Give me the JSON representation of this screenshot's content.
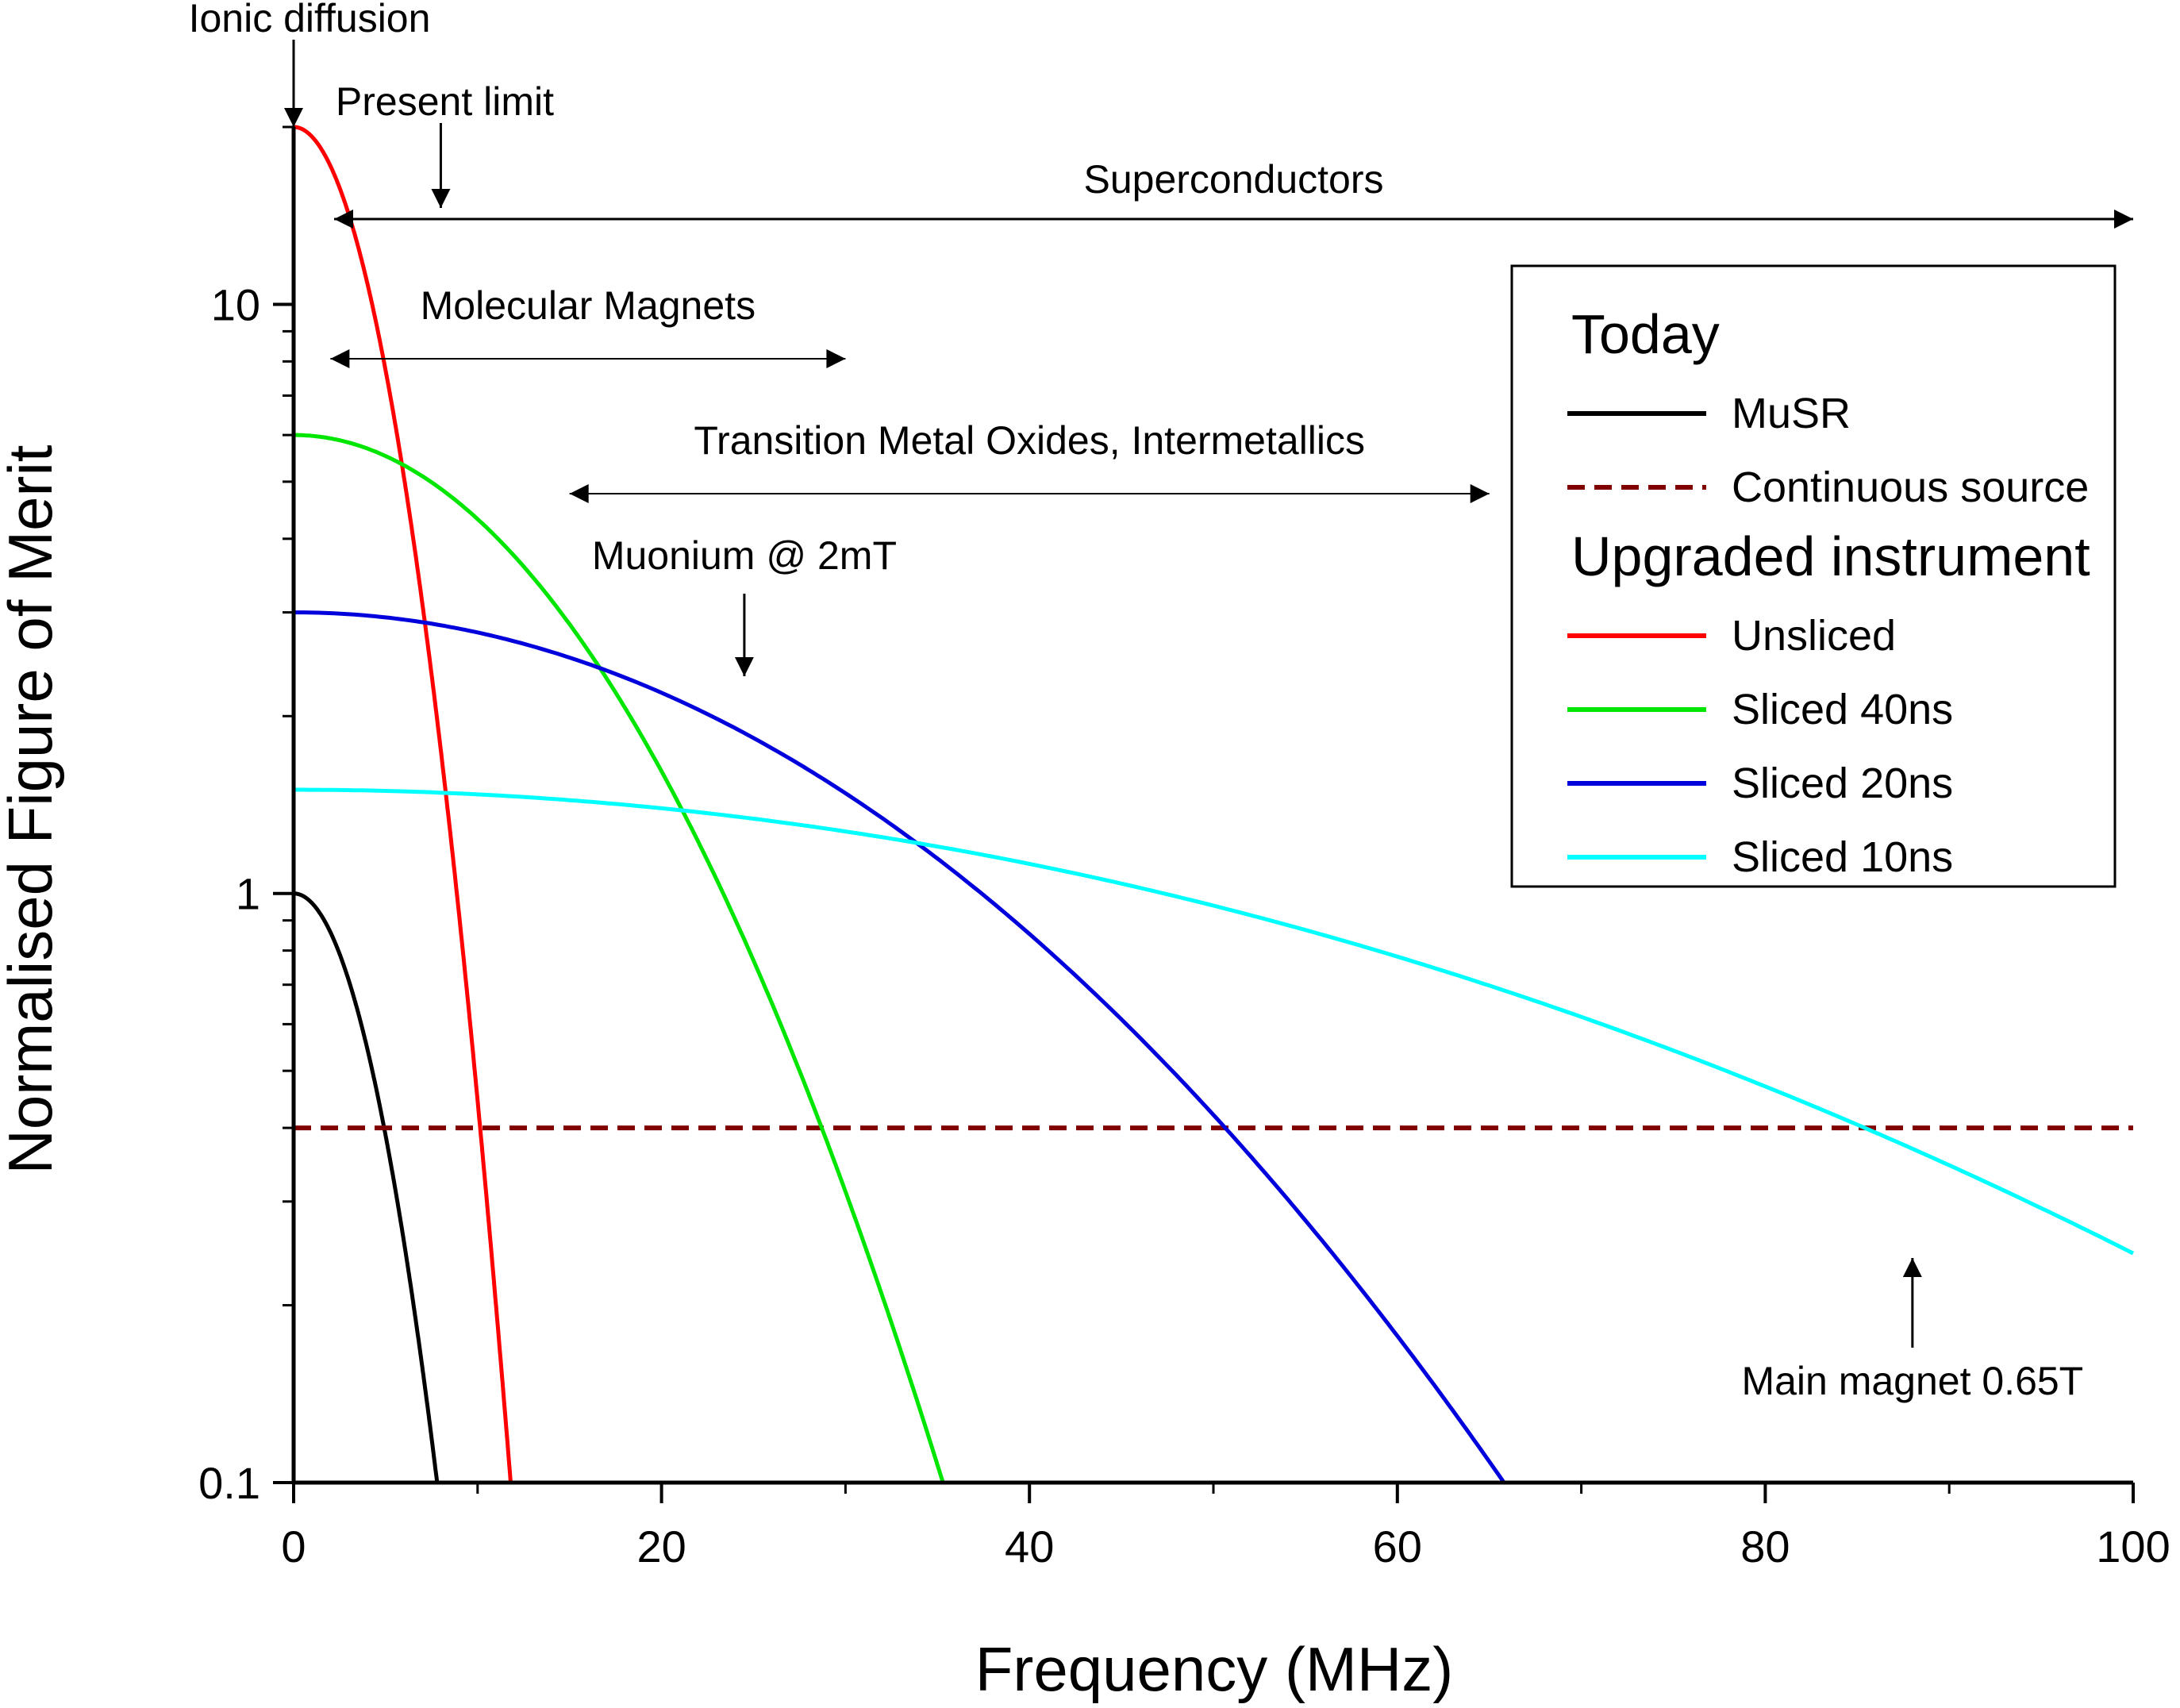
{
  "chart_data": {
    "type": "line",
    "title": "",
    "xlabel": "Frequency (MHz)",
    "ylabel": "Normalised Figure of Merit",
    "xlim": [
      0,
      100
    ],
    "ylim": [
      0.1,
      20
    ],
    "yscale": "log",
    "grid": false,
    "x_ticks": [
      0,
      20,
      40,
      60,
      80,
      100
    ],
    "x_tick_labels": [
      "0",
      "20",
      "40",
      "60",
      "80",
      "100"
    ],
    "y_ticks": [
      0.1,
      1,
      10
    ],
    "y_tick_labels": [
      "0.1",
      "1",
      "10"
    ],
    "series": [
      {
        "name": "MuSR",
        "group": "Today",
        "color": "#000000",
        "dash": "solid",
        "peak": 1.0,
        "cutoff_mhz": 7.8
      },
      {
        "name": "Continuous source",
        "group": "Today",
        "color": "#800000",
        "dash": "dashed",
        "constant": 0.4
      },
      {
        "name": "Unsliced",
        "group": "Upgraded instrument",
        "color": "#ff0000",
        "dash": "solid",
        "peak": 20.0,
        "cutoff_mhz": 11.8
      },
      {
        "name": "Sliced 40ns",
        "group": "Upgraded instrument",
        "color": "#00e600",
        "dash": "solid",
        "peak": 6.0,
        "cutoff_mhz": 35.3
      },
      {
        "name": "Sliced 20ns",
        "group": "Upgraded instrument",
        "color": "#0000dd",
        "dash": "solid",
        "peak": 3.0,
        "cutoff_mhz": 65.8
      },
      {
        "name": "Sliced 10ns",
        "group": "Upgraded instrument",
        "color": "#00ffff",
        "dash": "solid",
        "peak": 1.5,
        "value_at_100": 0.245
      }
    ],
    "legend": {
      "position": "right",
      "headings": [
        "Today",
        "Upgraded instrument"
      ]
    },
    "annotations": [
      {
        "id": "ionic",
        "text": "Ionic diffusion",
        "kind": "arrow-down",
        "x": 0
      },
      {
        "id": "present",
        "text": "Present limit",
        "kind": "arrow-down",
        "x": 8
      },
      {
        "id": "super",
        "text": "Superconductors",
        "kind": "range",
        "x_range": [
          2.2,
          100
        ]
      },
      {
        "id": "molmag",
        "text": "Molecular Magnets",
        "kind": "range",
        "x_range": [
          2,
          30
        ]
      },
      {
        "id": "tmo",
        "text": "Transition Metal Oxides, Intermetallics",
        "kind": "range",
        "x_range": [
          15,
          65
        ]
      },
      {
        "id": "muonium",
        "text": "Muonium @ 2mT",
        "kind": "arrow-down",
        "x": 24.5
      },
      {
        "id": "mainmag",
        "text": "Main magnet 0.65T",
        "kind": "arrow-up",
        "x": 88
      }
    ]
  }
}
